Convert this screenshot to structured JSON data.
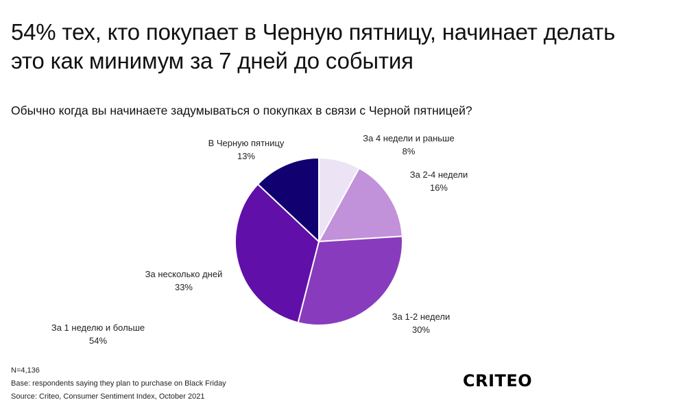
{
  "title_lines": [
    "54% тех, кто покупает в Черную пятницу, начинает делать",
    "это как минимум за 7 дней до события"
  ],
  "question": "Обычно когда вы начинаете задумываться о покупках в связи с Черной пятницей?",
  "chart_data": {
    "type": "pie",
    "title": "Обычно когда вы начинаете задумываться о покупках в связи с Черной пятницей?",
    "slices": [
      {
        "label": "За 4 недели и раньше",
        "value": 8,
        "pct_label": "8%",
        "color": "#ece4f4"
      },
      {
        "label": "За 2-4 недели",
        "value": 16,
        "pct_label": "16%",
        "color": "#c191da"
      },
      {
        "label": "За 1-2 недели",
        "value": 30,
        "pct_label": "30%",
        "color": "#893bbd"
      },
      {
        "label": "За несколько дней",
        "value": 33,
        "pct_label": "33%",
        "color": "#6010a8"
      },
      {
        "label": "В Черную пятницу",
        "value": 13,
        "pct_label": "13%",
        "color": "#100070"
      }
    ],
    "summary_annotation": {
      "label": "За 1 неделю и больше",
      "pct_label": "54%"
    },
    "start_angle": "12 o'clock",
    "direction": "clockwise"
  },
  "footer": {
    "n": "N=4,136",
    "base": "Base: respondents saying they plan to purchase on Black Friday",
    "source": "Source: Criteo, Consumer Sentiment Index, October 2021"
  },
  "logo_text": "CRITEO"
}
